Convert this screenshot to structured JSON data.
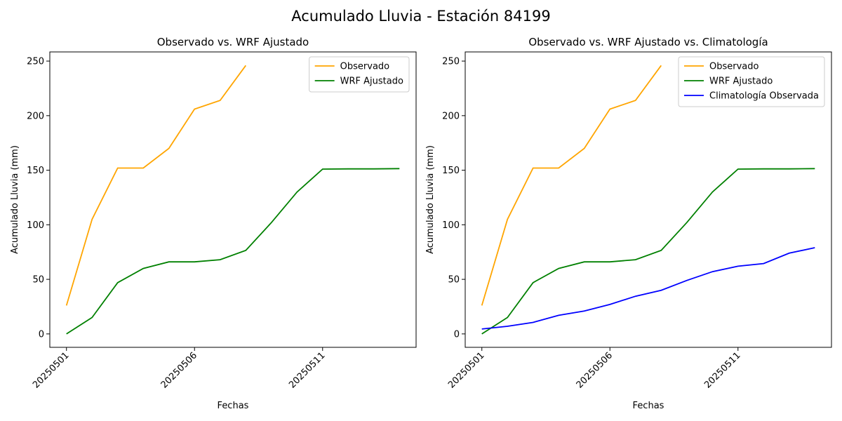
{
  "title": "Acumulado Lluvia - Estación 84199",
  "chart_data": [
    {
      "type": "line",
      "title": "Observado vs. WRF Ajustado",
      "xlabel": "Fechas",
      "ylabel": "Acumulado Lluvia (mm)",
      "categories": [
        "20250501",
        null,
        null,
        null,
        null,
        "20250506",
        null,
        null,
        null,
        null,
        "20250511",
        null,
        null,
        null
      ],
      "series": [
        {
          "name": "Observado",
          "color": "#ffa500",
          "values": [
            26,
            105,
            152,
            152,
            170,
            206,
            214,
            246,
            null,
            null,
            null,
            null,
            null,
            null
          ]
        },
        {
          "name": "WRF Ajustado",
          "color": "#008000",
          "values": [
            0,
            15,
            47,
            60,
            66,
            66,
            68,
            76.5,
            102,
            130,
            151,
            151.2,
            151.2,
            151.5
          ]
        }
      ],
      "ylim": [
        -12.3,
        258.4
      ],
      "yticks": [
        0,
        50,
        100,
        150,
        200,
        250
      ],
      "legend": "upper right"
    },
    {
      "type": "line",
      "title": "Observado vs. WRF Ajustado vs. Climatología",
      "xlabel": "Fechas",
      "ylabel": "Acumulado Lluvia (mm)",
      "categories": [
        "20250501",
        null,
        null,
        null,
        null,
        "20250506",
        null,
        null,
        null,
        null,
        "20250511",
        null,
        null,
        null
      ],
      "series": [
        {
          "name": "Observado",
          "color": "#ffa500",
          "values": [
            26,
            105,
            152,
            152,
            170,
            206,
            214,
            246,
            null,
            null,
            null,
            null,
            null,
            null
          ]
        },
        {
          "name": "WRF Ajustado",
          "color": "#008000",
          "values": [
            0,
            15,
            47,
            60,
            66,
            66,
            68,
            76.5,
            102,
            130,
            151,
            151.2,
            151.2,
            151.5
          ]
        },
        {
          "name": "Climatología Observada",
          "color": "#0000ff",
          "values": [
            4.5,
            7,
            10.5,
            17,
            21,
            27,
            34.5,
            40,
            49,
            57,
            62,
            64.5,
            74,
            79
          ]
        }
      ],
      "ylim": [
        -12.3,
        258.4
      ],
      "yticks": [
        0,
        50,
        100,
        150,
        200,
        250
      ],
      "legend": "upper right"
    }
  ]
}
